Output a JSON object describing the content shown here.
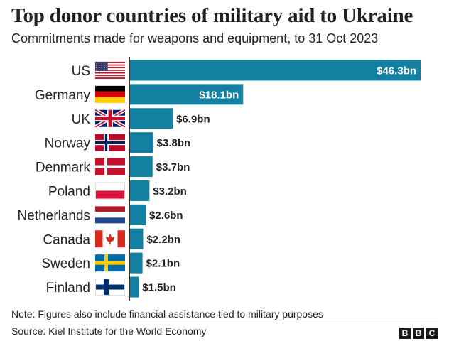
{
  "header": {
    "title": "Top donor countries of military aid to Ukraine",
    "subtitle": "Commitments made for weapons and equipment, to 31 Oct 2023"
  },
  "colors": {
    "bar": "#1380a1",
    "label_inside": "#ffffff",
    "label_outside": "#222222",
    "axis": "#333333"
  },
  "chart_data": {
    "type": "bar",
    "orientation": "horizontal",
    "categories": [
      "US",
      "Germany",
      "UK",
      "Norway",
      "Denmark",
      "Poland",
      "Netherlands",
      "Canada",
      "Sweden",
      "Finland"
    ],
    "values": [
      46.3,
      18.1,
      6.9,
      3.8,
      3.7,
      3.2,
      2.6,
      2.2,
      2.1,
      1.5
    ],
    "data_labels": [
      "$46.3bn",
      "$18.1bn",
      "$6.9bn",
      "$3.8bn",
      "$3.7bn",
      "$3.2bn",
      "$2.6bn",
      "$2.2bn",
      "$2.1bn",
      "$1.5bn"
    ],
    "flags": [
      "us-flag-icon",
      "germany-flag-icon",
      "uk-flag-icon",
      "norway-flag-icon",
      "denmark-flag-icon",
      "poland-flag-icon",
      "netherlands-flag-icon",
      "canada-flag-icon",
      "sweden-flag-icon",
      "finland-flag-icon"
    ],
    "unit": "$bn",
    "xlim": [
      0,
      46.3
    ],
    "grid": false,
    "legend": "none"
  },
  "footer": {
    "note": "Note: Figures also include financial assistance tied to military purposes",
    "source": "Source: Kiel Institute for the World Economy",
    "logo_letters": [
      "B",
      "B",
      "C"
    ]
  }
}
